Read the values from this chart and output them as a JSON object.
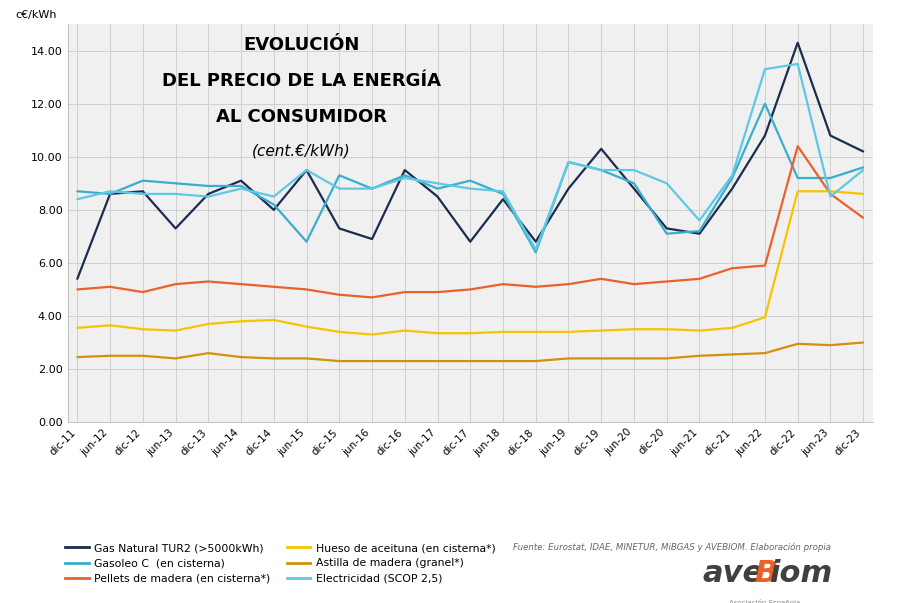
{
  "title_line1": "EVOLUCIÓN",
  "title_line2": "DEL PRECIO DE LA ENERGÍA",
  "title_line3": "AL CONSUMIDOR",
  "title_sub": "(cent.€/kWh)",
  "ylabel": "c€/kWh",
  "ylim": [
    0.0,
    15.0
  ],
  "yticks": [
    0.0,
    2.0,
    4.0,
    6.0,
    8.0,
    10.0,
    12.0,
    14.0
  ],
  "x_labels": [
    "dic-11",
    "jun-12",
    "dic-12",
    "jun-13",
    "dic-13",
    "jun-14",
    "dic-14",
    "jun-15",
    "dic-15",
    "jun-16",
    "dic-16",
    "jun-17",
    "dic-17",
    "jun-18",
    "dic-18",
    "jun-19",
    "dic-19",
    "jun-20",
    "dic-20",
    "jun-21",
    "dic-21",
    "jun-22",
    "dic-22",
    "jun-23",
    "dic-23"
  ],
  "series_order": [
    "Gas Natural TUR2 (>5000kWh)",
    "Gasoleo C  (en cisterna)",
    "Pellets de madera (en cisterna*)",
    "Hueso de aceituna (en cisterna*)",
    "Astilla de madera (granel*)",
    "Electricidad (SCOP 2,5)"
  ],
  "series": {
    "Gas Natural TUR2 (>5000kWh)": {
      "color": "#1b2d4f",
      "linewidth": 1.6,
      "values": [
        5.4,
        8.6,
        8.7,
        7.3,
        8.6,
        9.1,
        8.0,
        9.5,
        7.3,
        6.9,
        9.5,
        8.5,
        6.8,
        8.4,
        6.8,
        8.8,
        10.3,
        8.8,
        7.3,
        7.1,
        8.8,
        10.8,
        14.3,
        10.8,
        10.2
      ]
    },
    "Gasoleo C  (en cisterna)": {
      "color": "#3aadcc",
      "linewidth": 1.6,
      "values": [
        8.7,
        8.6,
        9.1,
        9.0,
        8.9,
        8.9,
        8.2,
        6.8,
        9.3,
        8.8,
        9.3,
        8.8,
        9.1,
        8.6,
        6.4,
        9.8,
        9.5,
        9.0,
        7.1,
        7.2,
        9.2,
        12.0,
        9.2,
        9.2,
        9.6
      ]
    },
    "Pellets de madera (en cisterna*)": {
      "color": "#e8622a",
      "linewidth": 1.6,
      "values": [
        5.0,
        5.1,
        4.9,
        5.2,
        5.3,
        5.2,
        5.1,
        5.0,
        4.8,
        4.7,
        4.9,
        4.9,
        5.0,
        5.2,
        5.1,
        5.2,
        5.4,
        5.2,
        5.3,
        5.4,
        5.8,
        5.9,
        10.4,
        8.6,
        7.7
      ]
    },
    "Hueso de aceituna (en cisterna*)": {
      "color": "#f5c400",
      "linewidth": 1.6,
      "values": [
        3.55,
        3.65,
        3.5,
        3.45,
        3.7,
        3.8,
        3.85,
        3.6,
        3.4,
        3.3,
        3.45,
        3.35,
        3.35,
        3.4,
        3.4,
        3.4,
        3.45,
        3.5,
        3.5,
        3.45,
        3.55,
        3.95,
        8.7,
        8.7,
        8.6
      ]
    },
    "Astilla de madera (granel*)": {
      "color": "#d4900a",
      "linewidth": 1.6,
      "values": [
        2.45,
        2.5,
        2.5,
        2.4,
        2.6,
        2.45,
        2.4,
        2.4,
        2.3,
        2.3,
        2.3,
        2.3,
        2.3,
        2.3,
        2.3,
        2.4,
        2.4,
        2.4,
        2.4,
        2.5,
        2.55,
        2.6,
        2.95,
        2.9,
        3.0
      ]
    },
    "Electricidad (SCOP 2,5)": {
      "color": "#5ec8e5",
      "linewidth": 1.6,
      "values": [
        8.4,
        8.7,
        8.6,
        8.6,
        8.5,
        8.8,
        8.5,
        9.5,
        8.8,
        8.8,
        9.2,
        9.0,
        8.8,
        8.7,
        6.5,
        9.8,
        9.5,
        9.5,
        9.0,
        7.6,
        9.3,
        13.3,
        13.5,
        8.5,
        9.5
      ]
    }
  },
  "legend_col1": [
    [
      "Gas Natural TUR2 (>5000kWh)",
      "#1b2d4f"
    ],
    [
      "Pellets de madera (en cisterna*)",
      "#e8622a"
    ],
    [
      "Astilla de madera (granel*)",
      "#d4900a"
    ]
  ],
  "legend_col2": [
    [
      "Gasoleo C  (en cisterna)",
      "#3aadcc"
    ],
    [
      "Hueso de aceituna (en cisterna*)",
      "#f5c400"
    ],
    [
      "Electricidad (SCOP 2,5)",
      "#5ec8e5"
    ]
  ],
  "source_text": "Fuente: Eurostat, IDAE, MINETUR, MiBGAS y AVEBIOM. Elaboración propia",
  "bg_color": "#ffffff",
  "grid_color": "#d0d0d0",
  "plot_bg_color": "#f0f0f0"
}
